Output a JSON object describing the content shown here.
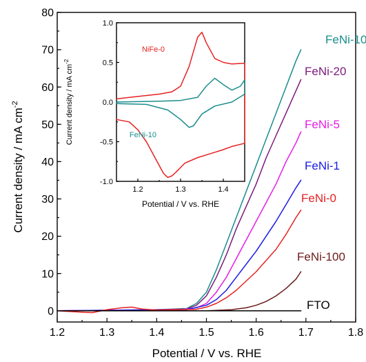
{
  "chart_data": [
    {
      "type": "line",
      "xlabel": "Potential / V vs. RHE",
      "ylabel": "Current density / mA cm",
      "ylabel_sup": "-2",
      "xlim": [
        1.2,
        1.8
      ],
      "ylim": [
        -3,
        80
      ],
      "xticks": [
        "1.2",
        "1.3",
        "1.4",
        "1.5",
        "1.6",
        "1.7",
        "1.8"
      ],
      "yticks": [
        "0",
        "10",
        "20",
        "30",
        "40",
        "50",
        "60",
        "70",
        "80"
      ],
      "grid": false,
      "series": [
        {
          "name": "FeNi-10",
          "color": "#1a8c8c",
          "x": [
            1.2,
            1.4,
            1.46,
            1.48,
            1.5,
            1.52,
            1.54,
            1.56,
            1.58,
            1.6,
            1.62,
            1.64,
            1.66,
            1.68,
            1.69
          ],
          "y": [
            0,
            0.3,
            0.6,
            2,
            5,
            11,
            18,
            25,
            32,
            39,
            46,
            53,
            60,
            67,
            70
          ]
        },
        {
          "name": "FeNi-20",
          "color": "#7b1a7b",
          "x": [
            1.2,
            1.4,
            1.46,
            1.48,
            1.5,
            1.52,
            1.54,
            1.56,
            1.58,
            1.6,
            1.62,
            1.64,
            1.66,
            1.68,
            1.69
          ],
          "y": [
            0,
            0.3,
            0.5,
            1.5,
            4,
            9,
            15,
            22,
            28,
            34,
            41,
            47,
            53,
            59,
            62
          ]
        },
        {
          "name": "FeNi-5",
          "color": "#e61ee6",
          "x": [
            1.2,
            1.45,
            1.48,
            1.5,
            1.52,
            1.54,
            1.56,
            1.58,
            1.6,
            1.62,
            1.64,
            1.66,
            1.68,
            1.69
          ],
          "y": [
            0,
            0.3,
            0.8,
            2,
            5,
            9,
            14,
            19,
            24,
            29,
            34,
            40,
            45,
            48
          ]
        },
        {
          "name": "FeNi-1",
          "color": "#1a1ae6",
          "x": [
            1.2,
            1.46,
            1.5,
            1.52,
            1.54,
            1.56,
            1.58,
            1.6,
            1.62,
            1.64,
            1.66,
            1.68,
            1.69
          ],
          "y": [
            0,
            0.3,
            1.5,
            3,
            5.5,
            9,
            12.5,
            16,
            20,
            24,
            28.5,
            33,
            35
          ]
        },
        {
          "name": "FeNi-0",
          "color": "#e62020",
          "x": [
            1.2,
            1.27,
            1.3,
            1.33,
            1.35,
            1.37,
            1.4,
            1.48,
            1.5,
            1.52,
            1.54,
            1.56,
            1.58,
            1.6,
            1.62,
            1.64,
            1.66,
            1.68,
            1.69
          ],
          "y": [
            0,
            -0.5,
            0.3,
            0.8,
            1,
            0.5,
            0.2,
            0.4,
            1,
            2,
            3.5,
            5.5,
            8,
            10.5,
            13.5,
            16.5,
            20.5,
            25,
            27
          ]
        },
        {
          "name": "FeNi-100",
          "color": "#6b1a1a",
          "x": [
            1.2,
            1.5,
            1.55,
            1.58,
            1.6,
            1.62,
            1.64,
            1.66,
            1.68,
            1.69
          ],
          "y": [
            0,
            0,
            0.3,
            0.8,
            1.5,
            2.5,
            4,
            6,
            8.5,
            10.5
          ]
        },
        {
          "name": "FTO",
          "color": "#000000",
          "x": [
            1.2,
            1.69
          ],
          "y": [
            0,
            0
          ]
        }
      ]
    },
    {
      "type": "line",
      "xlabel": "Potential / V vs. RHE",
      "ylabel": "Current density / mA cm",
      "ylabel_sup": "-2",
      "xlim": [
        1.15,
        1.45
      ],
      "ylim": [
        -1.0,
        1.0
      ],
      "xticks": [
        "1.2",
        "1.3",
        "1.4"
      ],
      "yticks": [
        "-1.0",
        "-0.5",
        "0.0",
        "0.5",
        "1.0"
      ],
      "grid": false,
      "series": [
        {
          "name": "NiFe-0",
          "color": "#e62020",
          "x": [
            1.15,
            1.2,
            1.25,
            1.28,
            1.3,
            1.32,
            1.34,
            1.35,
            1.36,
            1.38,
            1.4,
            1.42,
            1.45,
            1.45,
            1.42,
            1.4,
            1.37,
            1.34,
            1.31,
            1.29,
            1.28,
            1.27,
            1.26,
            1.24,
            1.22,
            1.2,
            1.18,
            1.15
          ],
          "y": [
            0.04,
            0.07,
            0.1,
            0.13,
            0.2,
            0.45,
            0.82,
            0.88,
            0.75,
            0.55,
            0.5,
            0.48,
            0.49,
            -0.52,
            -0.56,
            -0.6,
            -0.65,
            -0.7,
            -0.77,
            -0.88,
            -0.93,
            -0.95,
            -0.9,
            -0.7,
            -0.5,
            -0.35,
            -0.25,
            -0.22
          ]
        },
        {
          "name": "FeNi-10",
          "color": "#1a8c8c",
          "x": [
            1.15,
            1.25,
            1.3,
            1.34,
            1.36,
            1.38,
            1.4,
            1.42,
            1.44,
            1.45,
            1.45,
            1.42,
            1.38,
            1.35,
            1.33,
            1.32,
            1.3,
            1.27,
            1.22,
            1.15
          ],
          "y": [
            0,
            0.01,
            0.02,
            0.06,
            0.2,
            0.3,
            0.22,
            0.15,
            0.2,
            0.28,
            0.1,
            0.0,
            -0.05,
            -0.15,
            -0.3,
            -0.32,
            -0.22,
            -0.1,
            -0.03,
            -0.02
          ]
        }
      ]
    }
  ]
}
